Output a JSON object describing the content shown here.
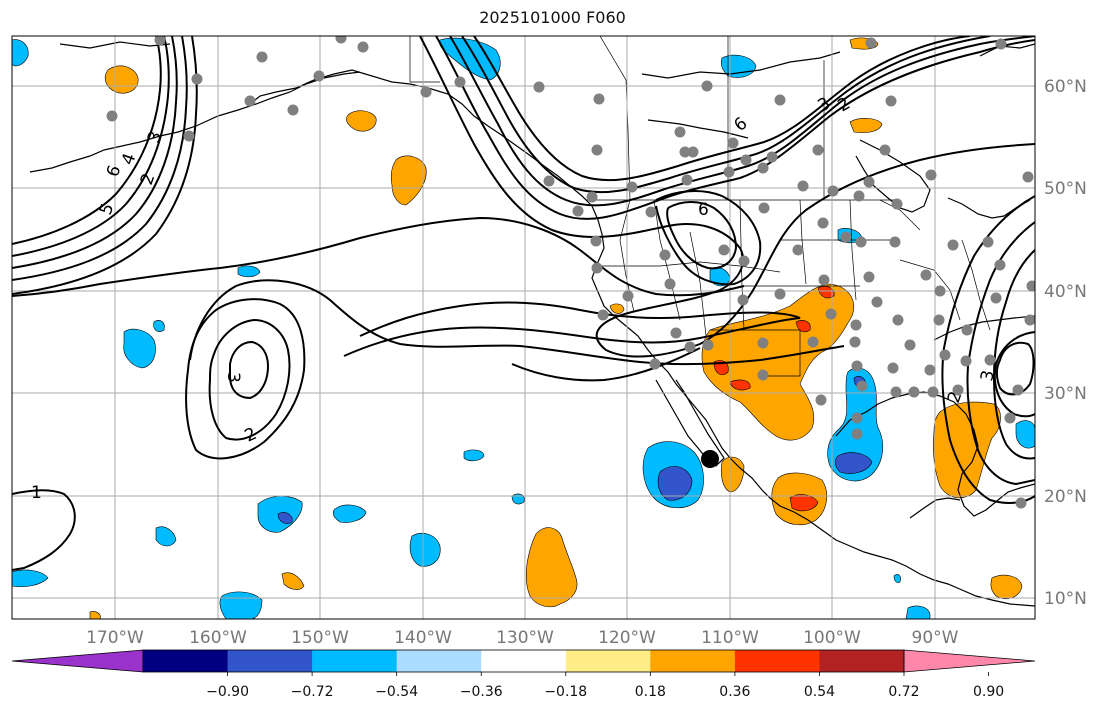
{
  "title": "2025101000 F060",
  "map": {
    "lon_labels": [
      "170°W",
      "160°W",
      "150°W",
      "140°W",
      "130°W",
      "120°W",
      "110°W",
      "100°W",
      "90°W"
    ],
    "lat_labels": [
      "60°N",
      "50°N",
      "40°N",
      "30°N",
      "20°N",
      "10°N"
    ],
    "contour_labels": [
      "6",
      "5",
      "4",
      "3",
      "2",
      "6",
      "3",
      "2",
      "6",
      "3",
      "2",
      "1",
      "2",
      "3"
    ]
  },
  "colorbar": {
    "tick_labels": [
      "−0.90",
      "−0.72",
      "−0.54",
      "−0.36",
      "−0.18",
      "0.18",
      "0.36",
      "0.54",
      "0.72",
      "0.90"
    ],
    "colors": [
      "#9933cc",
      "#000080",
      "#3355cc",
      "#00bbff",
      "#aaddff",
      "#ffffff",
      "#ffee88",
      "#ffa500",
      "#ff3300",
      "#b22222",
      "#ff88aa"
    ]
  },
  "colors": {
    "blue_light": "#00bbff",
    "blue_dark": "#3355cc",
    "orange": "#ffa500",
    "red": "#ff3300",
    "station": "#808080",
    "grid": "#aaaaaa"
  }
}
